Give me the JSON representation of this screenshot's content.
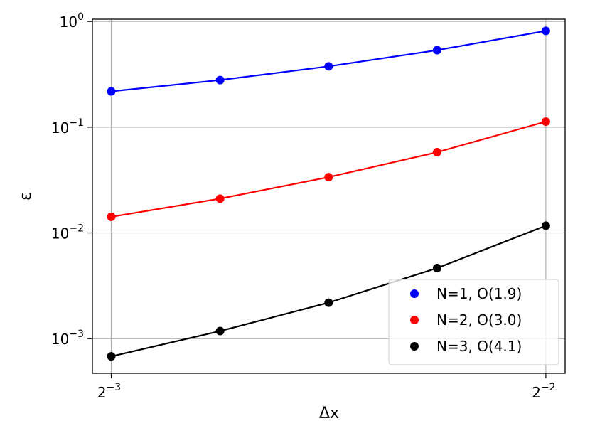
{
  "chart_data": {
    "type": "line",
    "title": "",
    "xlabel": "Δx",
    "ylabel": "ε",
    "xscale": "log2",
    "yscale": "log10",
    "xlim": [
      0.1213,
      0.2578
    ],
    "ylim": [
      0.00047,
      1.05
    ],
    "grid": true,
    "legend_position": "bottom-right",
    "x": [
      0.125,
      0.1487,
      0.1768,
      0.2102,
      0.25
    ],
    "xticks": [
      {
        "value": 0.125,
        "base": "2",
        "exp": "−3"
      },
      {
        "value": 0.25,
        "base": "2",
        "exp": "−2"
      }
    ],
    "yticks": [
      {
        "value": 0.001,
        "base": "10",
        "exp": "−3"
      },
      {
        "value": 0.01,
        "base": "10",
        "exp": "−2"
      },
      {
        "value": 0.1,
        "base": "10",
        "exp": "−1"
      },
      {
        "value": 1,
        "base": "10",
        "exp": "0"
      }
    ],
    "series": [
      {
        "name": "N=1, O(1.9)",
        "color": "#0000ff",
        "values": [
          0.218,
          0.279,
          0.376,
          0.535,
          0.815
        ]
      },
      {
        "name": "N=2, O(3.0)",
        "color": "#ff0000",
        "values": [
          0.0142,
          0.0211,
          0.0337,
          0.058,
          0.113
        ]
      },
      {
        "name": "N=3, O(4.1)",
        "color": "#000000",
        "values": [
          0.00068,
          0.00118,
          0.00219,
          0.00465,
          0.0117
        ]
      }
    ]
  }
}
